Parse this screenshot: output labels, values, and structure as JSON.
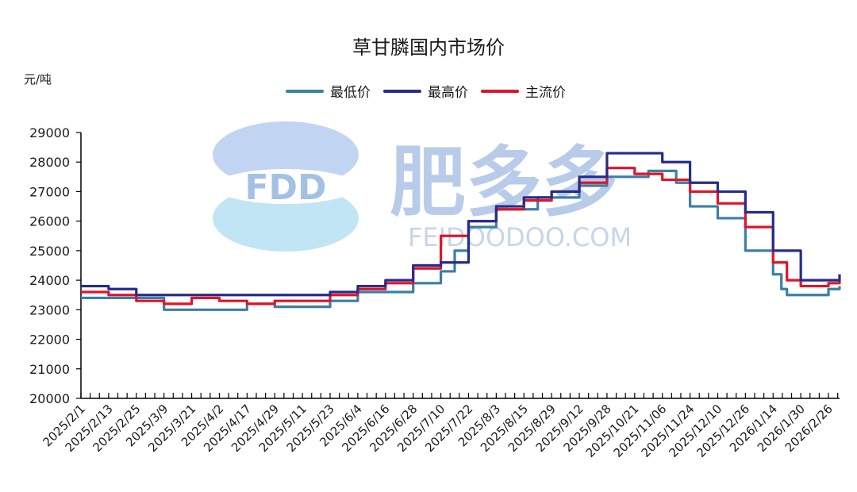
{
  "chart_data": {
    "type": "line",
    "title": "草甘膦国内市场价",
    "ylabel": "元/吨",
    "ylim": [
      20000,
      29000
    ],
    "yticks": [
      20000,
      21000,
      22000,
      23000,
      24000,
      25000,
      26000,
      27000,
      28000,
      29000
    ],
    "x_tick_labels": [
      "2025/2/1",
      "2025/2/13",
      "2025/2/25",
      "2025/3/9",
      "2025/3/21",
      "2025/4/2",
      "2025/4/17",
      "2025/4/29",
      "2025/5/11",
      "2025/5/23",
      "2025/6/4",
      "2025/6/16",
      "2025/6/28",
      "2025/7/10",
      "2025/7/22",
      "2025/8/3",
      "2025/8/15",
      "2025/8/29",
      "2025/9/12",
      "2025/9/28",
      "2025/10/21",
      "2025/11/06",
      "2025/11/24",
      "2025/12/10",
      "2025/12/26",
      "2026/1/14",
      "2026/1/30",
      "2026/2/26"
    ],
    "grid": false,
    "legend_position": "top-center",
    "series": [
      {
        "name": "最低价",
        "color": "#3a7fa8",
        "points": [
          [
            0,
            23400
          ],
          [
            2,
            23400
          ],
          [
            3,
            23000
          ],
          [
            5,
            23000
          ],
          [
            6,
            23200
          ],
          [
            7,
            23100
          ],
          [
            9,
            23300
          ],
          [
            10,
            23600
          ],
          [
            12,
            23900
          ],
          [
            13,
            24300
          ],
          [
            13.5,
            25000
          ],
          [
            14,
            25800
          ],
          [
            15,
            26400
          ],
          [
            16.5,
            26800
          ],
          [
            18,
            27200
          ],
          [
            19,
            27500
          ],
          [
            20.5,
            27700
          ],
          [
            21.5,
            27300
          ],
          [
            22,
            26500
          ],
          [
            23,
            26100
          ],
          [
            24,
            25000
          ],
          [
            25,
            24200
          ],
          [
            25.3,
            23700
          ],
          [
            25.5,
            23500
          ],
          [
            26,
            23500
          ],
          [
            27,
            23700
          ],
          [
            27.4,
            23800
          ]
        ]
      },
      {
        "name": "最高价",
        "color": "#262c8c",
        "points": [
          [
            0,
            23800
          ],
          [
            1,
            23700
          ],
          [
            2,
            23500
          ],
          [
            5,
            23500
          ],
          [
            9,
            23600
          ],
          [
            10,
            23800
          ],
          [
            11,
            24000
          ],
          [
            12,
            24500
          ],
          [
            13,
            24600
          ],
          [
            14,
            26000
          ],
          [
            15,
            26500
          ],
          [
            16,
            26800
          ],
          [
            17,
            27000
          ],
          [
            18,
            27500
          ],
          [
            19,
            28300
          ],
          [
            20.5,
            28300
          ],
          [
            21,
            28000
          ],
          [
            22,
            27300
          ],
          [
            23,
            27000
          ],
          [
            24,
            26300
          ],
          [
            25,
            25000
          ],
          [
            26,
            24000
          ],
          [
            27,
            24000
          ],
          [
            27.4,
            24200
          ]
        ]
      },
      {
        "name": "主流价",
        "color": "#e0142a",
        "points": [
          [
            0,
            23600
          ],
          [
            1,
            23500
          ],
          [
            2,
            23300
          ],
          [
            3,
            23200
          ],
          [
            4,
            23400
          ],
          [
            5,
            23300
          ],
          [
            6,
            23200
          ],
          [
            7,
            23300
          ],
          [
            9,
            23500
          ],
          [
            10,
            23700
          ],
          [
            11,
            23900
          ],
          [
            12,
            24400
          ],
          [
            13,
            25500
          ],
          [
            14,
            26000
          ],
          [
            15,
            26400
          ],
          [
            16,
            26700
          ],
          [
            17,
            27000
          ],
          [
            18,
            27300
          ],
          [
            19,
            27800
          ],
          [
            20,
            27600
          ],
          [
            21,
            27400
          ],
          [
            22,
            27000
          ],
          [
            23,
            26600
          ],
          [
            24,
            25800
          ],
          [
            25,
            24600
          ],
          [
            25.5,
            24000
          ],
          [
            26,
            23800
          ],
          [
            27,
            23900
          ],
          [
            27.4,
            24000
          ]
        ]
      }
    ]
  },
  "watermark": {
    "logo_text": "FDD",
    "brand_cn": "肥多多",
    "brand_en": "FEIDOODOO.COM"
  }
}
